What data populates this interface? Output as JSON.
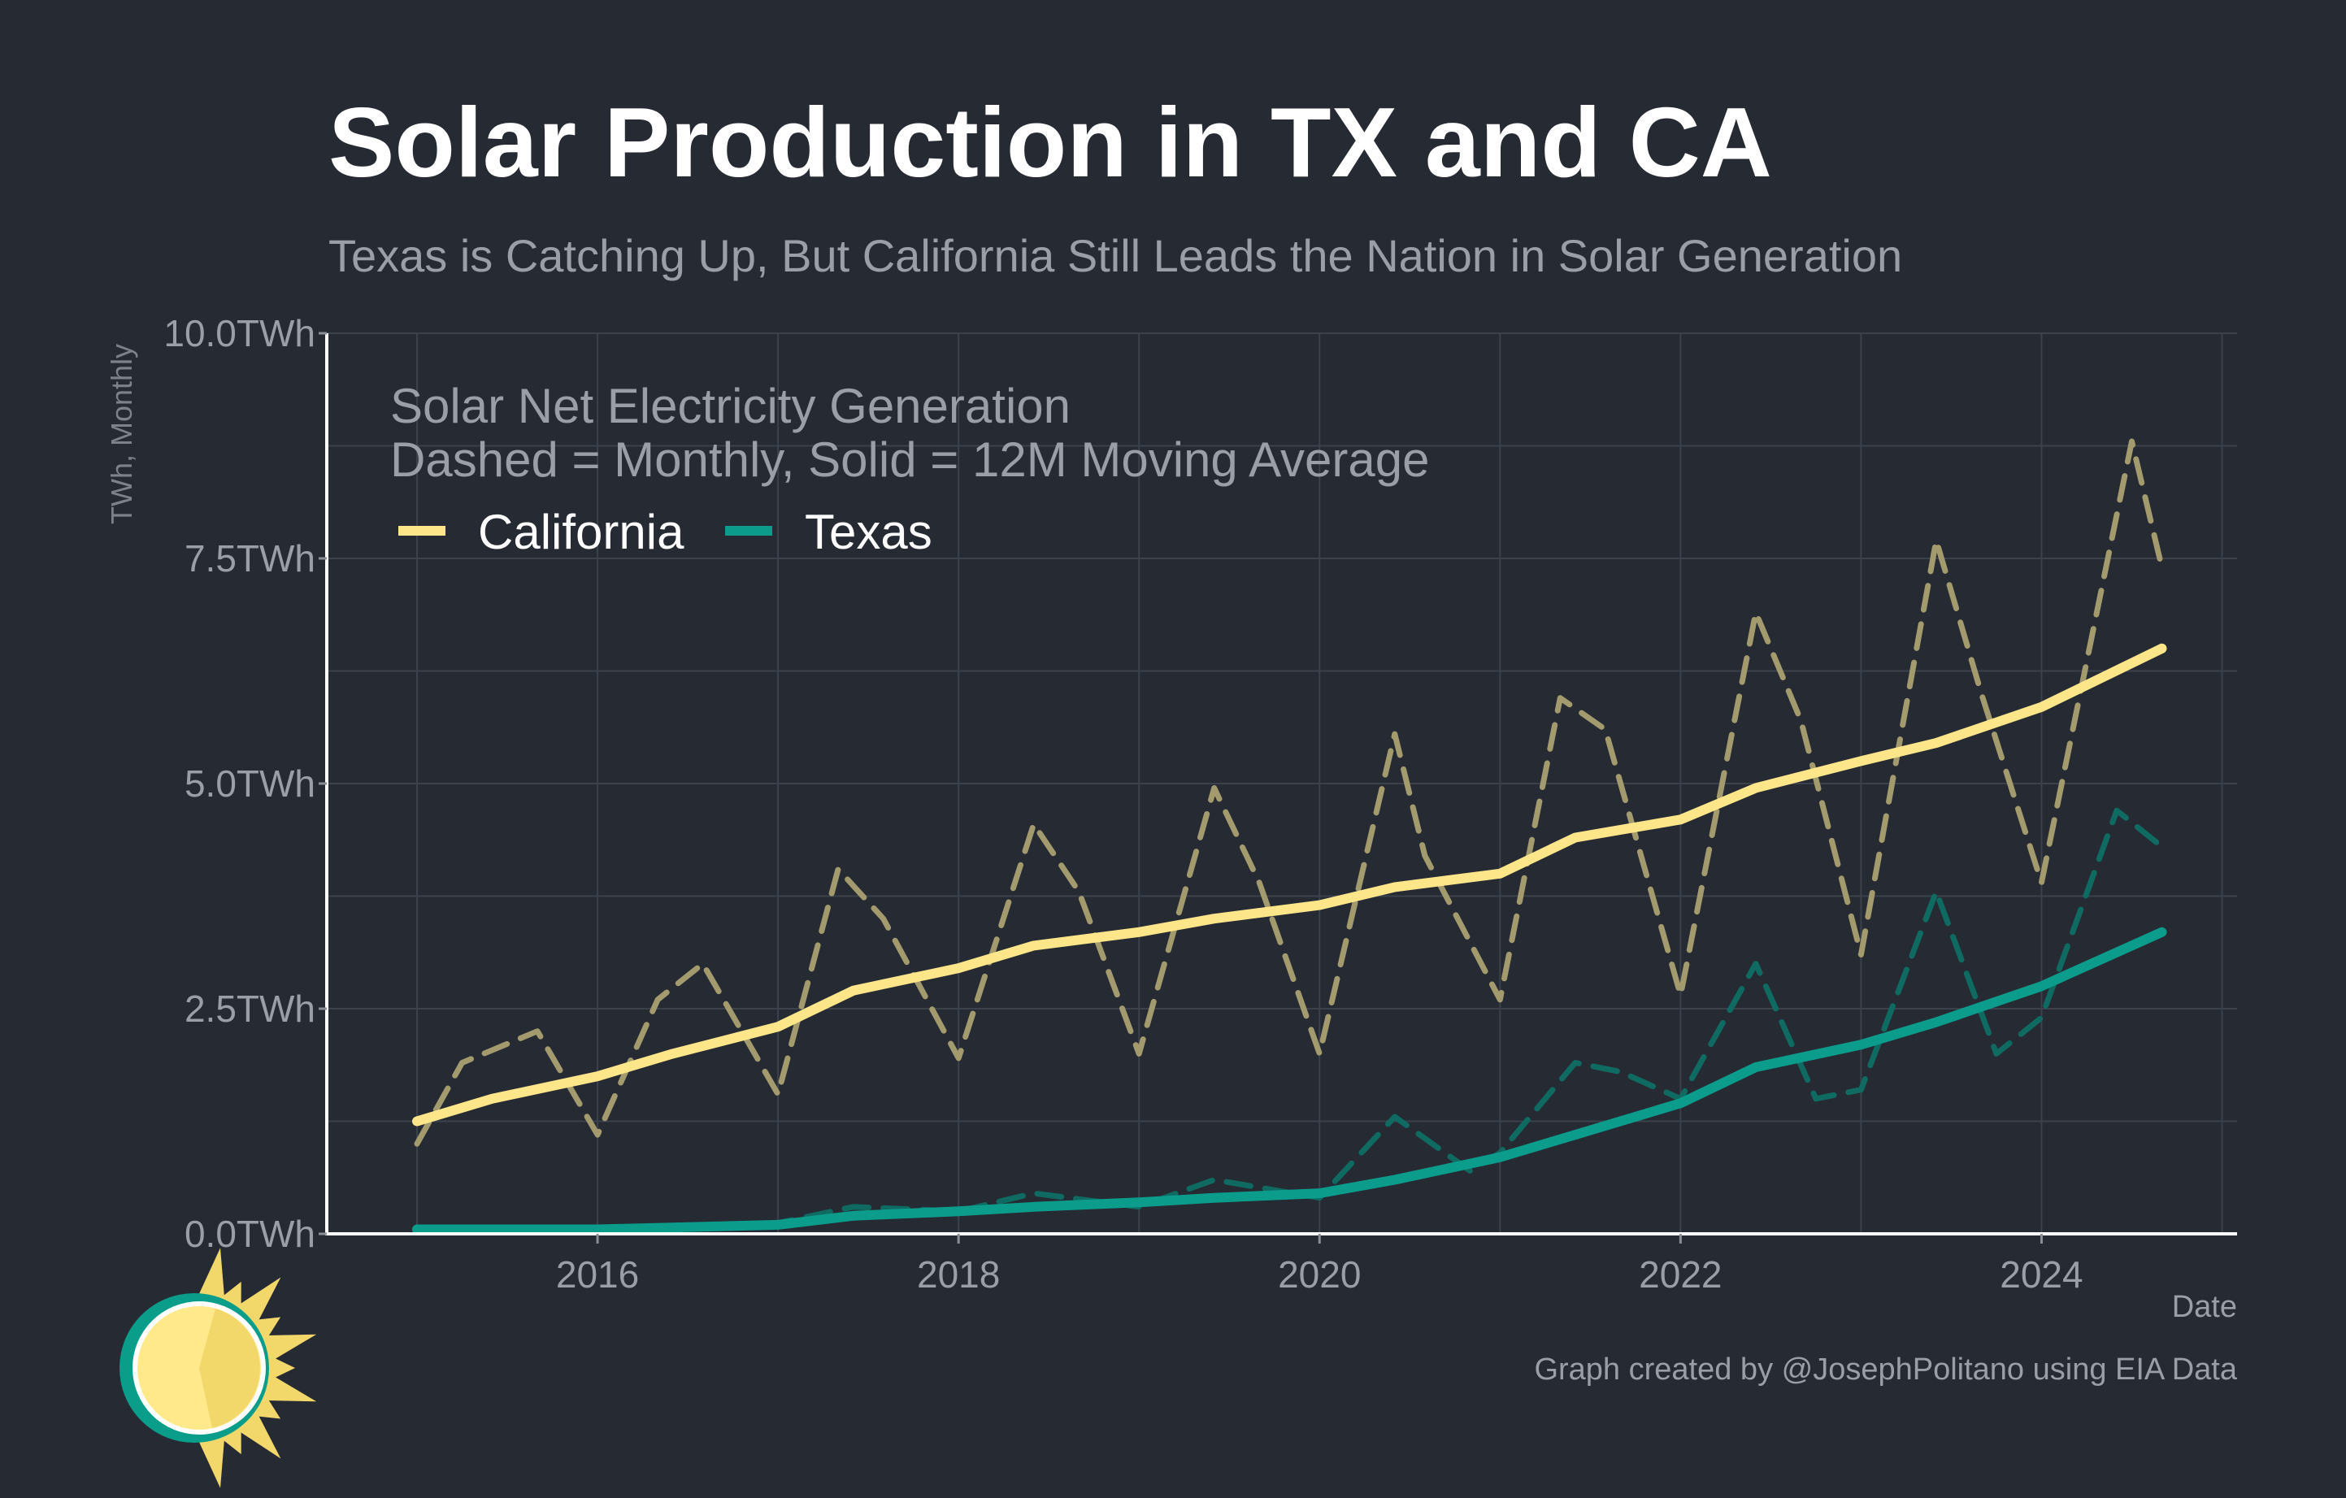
{
  "header": {
    "title": "Solar Production in TX and CA",
    "subtitle": "Texas is Catching Up, But California Still Leads the Nation in Solar Generation"
  },
  "footer": {
    "credit": "Graph created by @JosephPolitano using EIA Data"
  },
  "logo": {
    "icon": "sun-icon",
    "colors": [
      "#0a9e8a",
      "#ffe98a",
      "#f2d76b"
    ]
  },
  "chart_data": {
    "type": "line",
    "ylabel": "TWh, Monthly",
    "xlabel": "Date",
    "ylim": [
      0,
      10
    ],
    "xlim": [
      "2014-07",
      "2025-02"
    ],
    "y_ticks": [
      "0.0TWh",
      "2.5TWh",
      "5.0TWh",
      "7.5TWh",
      "10.0TWh"
    ],
    "y_tick_values": [
      0,
      2.5,
      5,
      7.5,
      10
    ],
    "x_ticks": [
      "2016",
      "2018",
      "2020",
      "2022",
      "2024"
    ],
    "x_tick_values": [
      "2016-01",
      "2018-01",
      "2020-01",
      "2022-01",
      "2024-01"
    ],
    "grid": true,
    "legend": {
      "placement": "top-left",
      "title_line1": "Solar Net Electricity Generation",
      "title_line2": "Dashed = Monthly, Solid = 12M Moving Average",
      "entries": [
        "California",
        "Texas"
      ]
    },
    "colors": {
      "california": "#fde68a",
      "california_monthly": "#a39a6e",
      "texas": "#0b9c8c",
      "texas_monthly": "#0f6b62"
    },
    "series": [
      {
        "name": "California",
        "style": "solid",
        "points": [
          [
            "2015-01",
            1.25
          ],
          [
            "2015-06",
            1.5
          ],
          [
            "2016-01",
            1.75
          ],
          [
            "2016-06",
            2.0
          ],
          [
            "2017-01",
            2.3
          ],
          [
            "2017-06",
            2.7
          ],
          [
            "2018-01",
            2.95
          ],
          [
            "2018-06",
            3.2
          ],
          [
            "2019-01",
            3.35
          ],
          [
            "2019-06",
            3.5
          ],
          [
            "2020-01",
            3.65
          ],
          [
            "2020-06",
            3.85
          ],
          [
            "2021-01",
            4.0
          ],
          [
            "2021-06",
            4.4
          ],
          [
            "2022-01",
            4.6
          ],
          [
            "2022-06",
            4.95
          ],
          [
            "2023-01",
            5.25
          ],
          [
            "2023-06",
            5.45
          ],
          [
            "2024-01",
            5.85
          ],
          [
            "2024-09",
            6.5
          ]
        ]
      },
      {
        "name": "California",
        "style": "dashed",
        "points": [
          [
            "2015-01",
            1.0
          ],
          [
            "2015-04",
            1.9
          ],
          [
            "2015-09",
            2.25
          ],
          [
            "2016-01",
            1.1
          ],
          [
            "2016-05",
            2.6
          ],
          [
            "2016-08",
            3.0
          ],
          [
            "2017-01",
            1.55
          ],
          [
            "2017-05",
            4.05
          ],
          [
            "2017-08",
            3.5
          ],
          [
            "2018-01",
            1.95
          ],
          [
            "2018-06",
            4.55
          ],
          [
            "2018-09",
            3.8
          ],
          [
            "2019-01",
            2.0
          ],
          [
            "2019-06",
            4.95
          ],
          [
            "2019-09",
            3.9
          ],
          [
            "2020-01",
            2.0
          ],
          [
            "2020-06",
            5.55
          ],
          [
            "2020-08",
            4.2
          ],
          [
            "2021-01",
            2.6
          ],
          [
            "2021-05",
            5.95
          ],
          [
            "2021-08",
            5.6
          ],
          [
            "2022-01",
            2.65
          ],
          [
            "2022-06",
            6.9
          ],
          [
            "2022-09",
            5.7
          ],
          [
            "2023-01",
            3.1
          ],
          [
            "2023-06",
            7.7
          ],
          [
            "2023-09",
            6.0
          ],
          [
            "2024-01",
            3.9
          ],
          [
            "2024-07",
            8.8
          ],
          [
            "2024-09",
            7.4
          ]
        ]
      },
      {
        "name": "Texas",
        "style": "solid",
        "points": [
          [
            "2015-01",
            0.05
          ],
          [
            "2016-01",
            0.05
          ],
          [
            "2017-01",
            0.1
          ],
          [
            "2017-06",
            0.2
          ],
          [
            "2018-01",
            0.25
          ],
          [
            "2018-06",
            0.3
          ],
          [
            "2019-01",
            0.35
          ],
          [
            "2019-06",
            0.4
          ],
          [
            "2020-01",
            0.45
          ],
          [
            "2020-06",
            0.6
          ],
          [
            "2021-01",
            0.85
          ],
          [
            "2021-06",
            1.1
          ],
          [
            "2022-01",
            1.45
          ],
          [
            "2022-06",
            1.85
          ],
          [
            "2023-01",
            2.1
          ],
          [
            "2023-06",
            2.35
          ],
          [
            "2024-01",
            2.75
          ],
          [
            "2024-09",
            3.35
          ]
        ]
      },
      {
        "name": "Texas",
        "style": "dashed",
        "points": [
          [
            "2015-01",
            0.05
          ],
          [
            "2016-06",
            0.06
          ],
          [
            "2017-01",
            0.12
          ],
          [
            "2017-06",
            0.3
          ],
          [
            "2018-01",
            0.25
          ],
          [
            "2018-06",
            0.45
          ],
          [
            "2019-01",
            0.3
          ],
          [
            "2019-06",
            0.6
          ],
          [
            "2020-01",
            0.4
          ],
          [
            "2020-06",
            1.3
          ],
          [
            "2020-11",
            0.7
          ],
          [
            "2021-01",
            0.9
          ],
          [
            "2021-06",
            1.9
          ],
          [
            "2021-09",
            1.8
          ],
          [
            "2022-01",
            1.5
          ],
          [
            "2022-06",
            3.0
          ],
          [
            "2022-10",
            1.5
          ],
          [
            "2023-01",
            1.6
          ],
          [
            "2023-06",
            3.8
          ],
          [
            "2023-10",
            2.0
          ],
          [
            "2024-01",
            2.4
          ],
          [
            "2024-06",
            4.7
          ],
          [
            "2024-09",
            4.3
          ]
        ]
      }
    ]
  }
}
